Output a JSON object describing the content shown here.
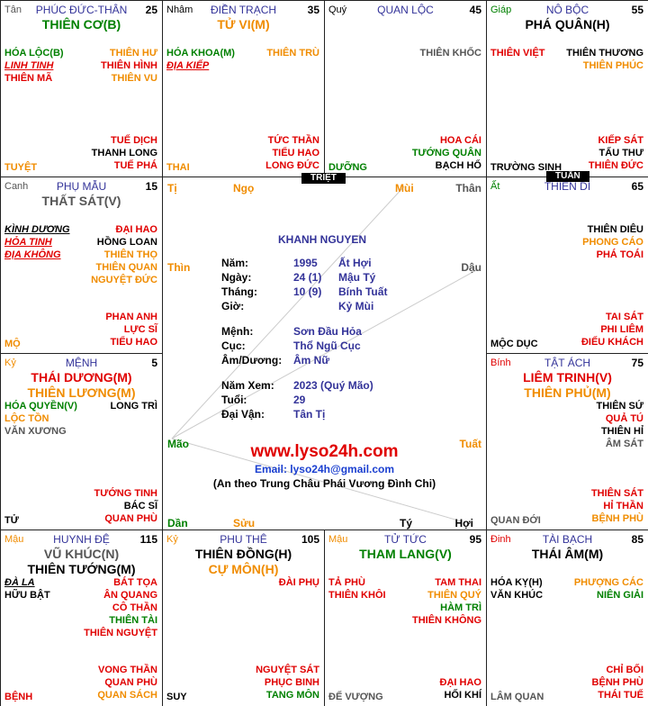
{
  "palaces": [
    {
      "stem": {
        "t": "Tân",
        "c": "#555555"
      },
      "name": "PHÚC ĐỨC-THÂN",
      "age": "25",
      "main": [
        {
          "t": "THIÊN CƠ(B)",
          "c": "#008000"
        }
      ],
      "left": [
        {
          "t": "HÓA LỘC(B)",
          "c": "#008000"
        },
        {
          "t": "LINH TINH",
          "c": "#e00000",
          "u": true
        },
        {
          "t": "THIÊN MÃ",
          "c": "#e00000"
        }
      ],
      "right": [
        {
          "t": "THIÊN HƯ",
          "c": "#f08c00"
        },
        {
          "t": "THIÊN HÌNH",
          "c": "#e00000"
        },
        {
          "t": "THIÊN VU",
          "c": "#f08c00"
        }
      ],
      "bottom_right": [
        {
          "t": "TUẾ DỊCH",
          "c": "#e00000"
        },
        {
          "t": "THANH LONG",
          "c": "#000000"
        },
        {
          "t": "TUẾ PHÁ",
          "c": "#e00000"
        }
      ],
      "bottom_left": {
        "t": "TUYỆT",
        "c": "#f08c00"
      }
    },
    {
      "stem": {
        "t": "Nhâm",
        "c": "#000000"
      },
      "name": "ĐIỀN TRẠCH",
      "age": "35",
      "main": [
        {
          "t": "TỬ VI(M)",
          "c": "#f08c00"
        }
      ],
      "left": [
        {
          "t": "HÓA KHOA(M)",
          "c": "#008000"
        },
        {
          "t": "ĐỊA KIẾP",
          "c": "#e00000",
          "u": true
        }
      ],
      "right": [
        {
          "t": "THIÊN TRÙ",
          "c": "#f08c00"
        }
      ],
      "bottom_right": [
        {
          "t": "TỨC THẦN",
          "c": "#e00000"
        },
        {
          "t": "TIỂU HAO",
          "c": "#e00000"
        },
        {
          "t": "LONG ĐỨC",
          "c": "#e00000"
        }
      ],
      "bottom_left": {
        "t": "THAI",
        "c": "#f08c00"
      }
    },
    {
      "stem": {
        "t": "Quý",
        "c": "#000000"
      },
      "name": "QUAN LỘC",
      "age": "45",
      "main": [],
      "left": [],
      "right": [
        {
          "t": "THIÊN KHỐC",
          "c": "#555555"
        }
      ],
      "bottom_right": [
        {
          "t": "HOA CÁI",
          "c": "#e00000"
        },
        {
          "t": "TƯỚNG QUÂN",
          "c": "#008000"
        },
        {
          "t": "BẠCH HỔ",
          "c": "#000000"
        }
      ],
      "bottom_left": {
        "t": "DƯỠNG",
        "c": "#008000"
      }
    },
    {
      "stem": {
        "t": "Giáp",
        "c": "#008000"
      },
      "name": "NÔ BỘC",
      "age": "55",
      "main": [
        {
          "t": "PHÁ QUÂN(H)",
          "c": "#000000"
        }
      ],
      "left": [
        {
          "t": "THIÊN VIỆT",
          "c": "#e00000"
        }
      ],
      "right": [
        {
          "t": "THIÊN THƯƠNG",
          "c": "#000000"
        },
        {
          "t": "THIÊN PHÚC",
          "c": "#f08c00"
        }
      ],
      "bottom_right": [
        {
          "t": "KIẾP SÁT",
          "c": "#e00000"
        },
        {
          "t": "TẤU THƯ",
          "c": "#000000"
        },
        {
          "t": "THIÊN ĐỨC",
          "c": "#e00000"
        }
      ],
      "bottom_left": {
        "t": "TRƯỜNG SINH",
        "c": "#000000"
      }
    },
    {
      "stem": {
        "t": "Canh",
        "c": "#555555"
      },
      "name": "PHỤ MẪU",
      "age": "15",
      "main": [
        {
          "t": "THẤT SÁT(V)",
          "c": "#555555"
        }
      ],
      "left": [
        {
          "t": "KÌNH DƯƠNG",
          "c": "#000000",
          "u": true
        },
        {
          "t": "HỎA TINH",
          "c": "#e00000",
          "u": true
        },
        {
          "t": "ĐỊA KHÔNG",
          "c": "#e00000",
          "u": true
        }
      ],
      "right": [
        {
          "t": "ĐẠI HAO",
          "c": "#e00000"
        },
        {
          "t": "HỒNG LOAN",
          "c": "#000000"
        },
        {
          "t": "THIÊN THỌ",
          "c": "#f08c00"
        },
        {
          "t": "THIÊN QUAN",
          "c": "#f08c00"
        },
        {
          "t": "NGUYỆT ĐỨC",
          "c": "#f08c00"
        }
      ],
      "bottom_right": [
        {
          "t": "PHAN ANH",
          "c": "#e00000"
        },
        {
          "t": "LỰC SĨ",
          "c": "#e00000"
        },
        {
          "t": "TIỂU HAO",
          "c": "#e00000"
        }
      ],
      "bottom_left": {
        "t": "MỘ",
        "c": "#f08c00"
      }
    },
    {
      "stem": {
        "t": "Ất",
        "c": "#008000"
      },
      "name": "THIÊN DI",
      "age": "65",
      "main": [],
      "left": [],
      "right": [
        {
          "t": "THIÊN DIÊU",
          "c": "#000000"
        },
        {
          "t": "PHONG CÁO",
          "c": "#f08c00"
        },
        {
          "t": "PHÁ TOÁI",
          "c": "#e00000"
        }
      ],
      "bottom_right": [
        {
          "t": "TAI SÁT",
          "c": "#e00000"
        },
        {
          "t": "PHI LIÊM",
          "c": "#e00000"
        },
        {
          "t": "ĐIẾU KHÁCH",
          "c": "#e00000"
        }
      ],
      "bottom_left": {
        "t": "MỘC DỤC",
        "c": "#000000"
      }
    },
    {
      "stem": {
        "t": "Kỷ",
        "c": "#f08c00"
      },
      "name": "MỆNH",
      "age": "5",
      "main": [
        {
          "t": "THÁI DƯƠNG(M)",
          "c": "#e00000"
        },
        {
          "t": "THIÊN LƯƠNG(M)",
          "c": "#f08c00"
        }
      ],
      "left": [
        {
          "t": "HÓA QUYỀN(V)",
          "c": "#008000"
        },
        {
          "t": "LỘC TỒN",
          "c": "#f08c00"
        },
        {
          "t": "VĂN XƯƠNG",
          "c": "#555555"
        }
      ],
      "right": [
        {
          "t": "LONG TRÌ",
          "c": "#000000"
        }
      ],
      "bottom_right": [
        {
          "t": "TƯỚNG TINH",
          "c": "#e00000"
        },
        {
          "t": "BÁC SĨ",
          "c": "#000000"
        },
        {
          "t": "QUAN PHÙ",
          "c": "#e00000"
        }
      ],
      "bottom_left": {
        "t": "TỬ",
        "c": "#000000"
      }
    },
    {
      "stem": {
        "t": "Bính",
        "c": "#e00000"
      },
      "name": "TẬT ÁCH",
      "age": "75",
      "main": [
        {
          "t": "LIÊM TRINH(V)",
          "c": "#e00000"
        },
        {
          "t": "THIÊN PHỦ(M)",
          "c": "#f08c00"
        }
      ],
      "left": [],
      "right": [
        {
          "t": "THIÊN SỨ",
          "c": "#000000"
        },
        {
          "t": "QUẢ TÚ",
          "c": "#e00000"
        },
        {
          "t": "THIÊN HỈ",
          "c": "#000000"
        },
        {
          "t": "ÂM SÁT",
          "c": "#555555"
        }
      ],
      "bottom_right": [
        {
          "t": "THIÊN SÁT",
          "c": "#e00000"
        },
        {
          "t": "HỈ THẦN",
          "c": "#e00000"
        },
        {
          "t": "BỆNH PHÙ",
          "c": "#f08c00"
        }
      ],
      "bottom_left": {
        "t": "QUAN ĐỚI",
        "c": "#555555"
      }
    },
    {
      "stem": {
        "t": "Mậu",
        "c": "#f08c00"
      },
      "name": "HUYNH ĐỆ",
      "age": "115",
      "main": [
        {
          "t": "VŨ KHÚC(N)",
          "c": "#555555"
        },
        {
          "t": "THIÊN TƯỚNG(M)",
          "c": "#000000"
        }
      ],
      "left": [
        {
          "t": "ĐÀ LA",
          "c": "#000000",
          "u": true
        },
        {
          "t": "HỮU BẬT",
          "c": "#000000"
        }
      ],
      "right": [
        {
          "t": "BÁT TỌA",
          "c": "#e00000"
        },
        {
          "t": "ÂN QUANG",
          "c": "#e00000"
        },
        {
          "t": "CÔ THẦN",
          "c": "#e00000"
        },
        {
          "t": "THIÊN TÀI",
          "c": "#008000"
        },
        {
          "t": "THIÊN NGUYỆT",
          "c": "#e00000"
        }
      ],
      "bottom_right": [
        {
          "t": "VONG THẦN",
          "c": "#e00000"
        },
        {
          "t": "QUAN PHÙ",
          "c": "#e00000"
        },
        {
          "t": "QUAN SÁCH",
          "c": "#f08c00"
        }
      ],
      "bottom_left": {
        "t": "BỆNH",
        "c": "#e00000"
      }
    },
    {
      "stem": {
        "t": "Kỷ",
        "c": "#f08c00"
      },
      "name": "PHU THÊ",
      "age": "105",
      "main": [
        {
          "t": "THIÊN ĐỒNG(H)",
          "c": "#000000"
        },
        {
          "t": "CỰ MÔN(H)",
          "c": "#f08c00"
        }
      ],
      "left": [],
      "right": [
        {
          "t": "ĐÀI PHỤ",
          "c": "#e00000"
        }
      ],
      "bottom_right": [
        {
          "t": "NGUYỆT SÁT",
          "c": "#e00000"
        },
        {
          "t": "PHỤC BINH",
          "c": "#e00000"
        },
        {
          "t": "TANG MÔN",
          "c": "#008000"
        }
      ],
      "bottom_left": {
        "t": "SUY",
        "c": "#000000"
      }
    },
    {
      "stem": {
        "t": "Mậu",
        "c": "#f08c00"
      },
      "name": "TỬ TỨC",
      "age": "95",
      "main": [
        {
          "t": "THAM LANG(V)",
          "c": "#008000"
        }
      ],
      "left": [
        {
          "t": "TẢ PHÙ",
          "c": "#e00000"
        },
        {
          "t": "THIÊN KHÔI",
          "c": "#e00000"
        }
      ],
      "right": [
        {
          "t": "TAM THAI",
          "c": "#e00000"
        },
        {
          "t": "THIÊN QUÝ",
          "c": "#f08c00"
        },
        {
          "t": "HÀM TRÌ",
          "c": "#008000"
        },
        {
          "t": "THIÊN KHÔNG",
          "c": "#e00000"
        }
      ],
      "bottom_right": [
        {
          "t": "ĐẠI HAO",
          "c": "#e00000"
        },
        {
          "t": "HỐI KHÍ",
          "c": "#000000"
        }
      ],
      "bottom_left": {
        "t": "ĐẾ VƯỢNG",
        "c": "#555555"
      }
    },
    {
      "stem": {
        "t": "Đinh",
        "c": "#e00000"
      },
      "name": "TÀI BẠCH",
      "age": "85",
      "main": [
        {
          "t": "THÁI ÂM(M)",
          "c": "#000000"
        }
      ],
      "left": [
        {
          "t": "HÓA KỴ(H)",
          "c": "#000000"
        },
        {
          "t": "VĂN KHÚC",
          "c": "#000000"
        }
      ],
      "right": [
        {
          "t": "PHƯỢNG CÁC",
          "c": "#f08c00"
        },
        {
          "t": "NIÊN GIẢI",
          "c": "#008000"
        }
      ],
      "bottom_right": [
        {
          "t": "CHỈ BỐI",
          "c": "#e00000"
        },
        {
          "t": "BỆNH PHÙ",
          "c": "#e00000"
        },
        {
          "t": "THÁI TUẾ",
          "c": "#e00000"
        }
      ],
      "bottom_left": {
        "t": "LÂM QUAN",
        "c": "#555555"
      }
    }
  ],
  "markers": {
    "triet": "TRIỆT",
    "tuan": "TUẦN"
  },
  "branches": [
    {
      "t": "Tị",
      "c": "#f08c00"
    },
    {
      "t": "Ngọ",
      "c": "#f08c00"
    },
    {
      "t": "Mùi",
      "c": "#f08c00"
    },
    {
      "t": "Thân",
      "c": "#555555"
    },
    {
      "t": "Dậu",
      "c": "#555555"
    },
    {
      "t": "Tuất",
      "c": "#f08c00"
    },
    {
      "t": "Hợi",
      "c": "#000000"
    },
    {
      "t": "Tý",
      "c": "#000000"
    },
    {
      "t": "Sửu",
      "c": "#f08c00"
    },
    {
      "t": "Dần",
      "c": "#008000"
    },
    {
      "t": "Mão",
      "c": "#008000"
    },
    {
      "t": "Thìn",
      "c": "#f08c00"
    }
  ],
  "center": {
    "name": "KHANH NGUYEN",
    "rows": [
      {
        "label": "Năm:",
        "number": "1995",
        "can_chi": "Ất Hợi"
      },
      {
        "label": "Ngày:",
        "number": "24 (1)",
        "can_chi": "Mậu Tý"
      },
      {
        "label": "Tháng:",
        "number": "10 (9)",
        "can_chi": "Bính Tuất"
      },
      {
        "label": "Giờ:",
        "can_chi": "Kỷ Mùi"
      },
      {
        "label": "Mệnh:",
        "value": "Sơn Đầu Hỏa"
      },
      {
        "label": "Cục:",
        "value": "Thổ Ngũ Cục"
      },
      {
        "label": "Âm/Dương:",
        "value": "Âm Nữ"
      },
      {
        "label": "Năm Xem:",
        "value": "2023 (Quý Mão)"
      },
      {
        "label": "Tuổi:",
        "value": "29"
      },
      {
        "label": "Đại Vận:",
        "value": "Tân Tị"
      }
    ],
    "website": "www.lyso24h.com",
    "email": "Email: lyso24h@gmail.com",
    "note": "(An theo Trung Châu Phái Vương Đình Chi)"
  }
}
